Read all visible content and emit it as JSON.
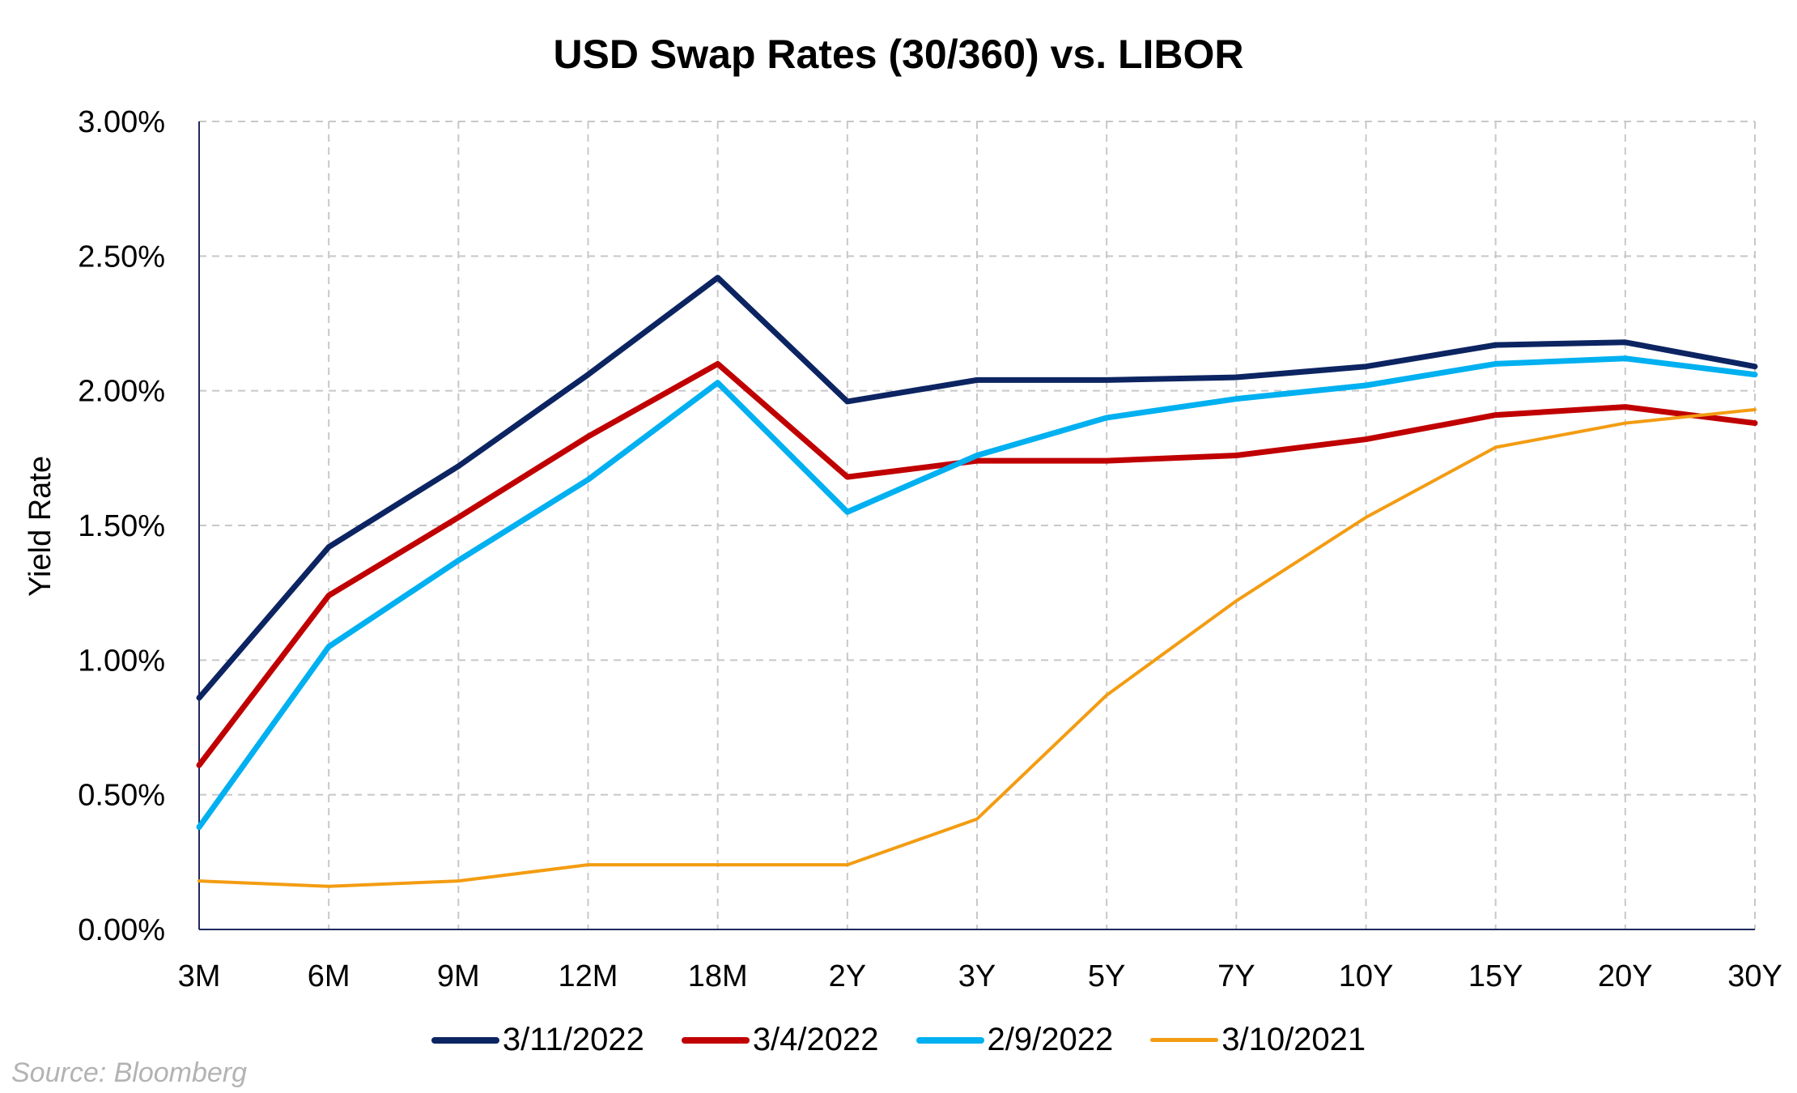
{
  "chart_data": {
    "type": "line",
    "title": "USD Swap Rates (30/360) vs. LIBOR",
    "xlabel": "",
    "ylabel": "Yield Rate",
    "categories": [
      "3M",
      "6M",
      "9M",
      "12M",
      "18M",
      "2Y",
      "3Y",
      "5Y",
      "7Y",
      "10Y",
      "15Y",
      "20Y",
      "30Y"
    ],
    "ylim": [
      0,
      3.0
    ],
    "yticks": [
      {
        "value": 0.0,
        "label": "0.00%"
      },
      {
        "value": 0.5,
        "label": "0.50%"
      },
      {
        "value": 1.0,
        "label": "1.00%"
      },
      {
        "value": 1.5,
        "label": "1.50%"
      },
      {
        "value": 2.0,
        "label": "2.00%"
      },
      {
        "value": 2.5,
        "label": "2.50%"
      },
      {
        "value": 3.0,
        "label": "3.00%"
      }
    ],
    "grid": true,
    "legend_position": "bottom",
    "series": [
      {
        "name": "3/11/2022",
        "color": "#0c2461",
        "values": [
          0.86,
          1.42,
          1.72,
          2.06,
          2.42,
          1.96,
          2.04,
          2.04,
          2.05,
          2.09,
          2.17,
          2.18,
          2.09
        ]
      },
      {
        "name": "3/4/2022",
        "color": "#c00000",
        "values": [
          0.61,
          1.24,
          1.53,
          1.83,
          2.1,
          1.68,
          1.74,
          1.74,
          1.76,
          1.82,
          1.91,
          1.94,
          1.88
        ]
      },
      {
        "name": "2/9/2022",
        "color": "#00b0f0",
        "values": [
          0.38,
          1.05,
          1.37,
          1.67,
          2.03,
          1.55,
          1.76,
          1.9,
          1.97,
          2.02,
          2.1,
          2.12,
          2.06
        ]
      },
      {
        "name": "3/10/2021",
        "color": "#f39c12",
        "values": [
          0.18,
          0.16,
          0.18,
          0.24,
          0.24,
          0.24,
          0.41,
          0.87,
          1.22,
          1.53,
          1.79,
          1.88,
          1.93
        ]
      }
    ]
  },
  "source_note": "Source: Bloomberg"
}
